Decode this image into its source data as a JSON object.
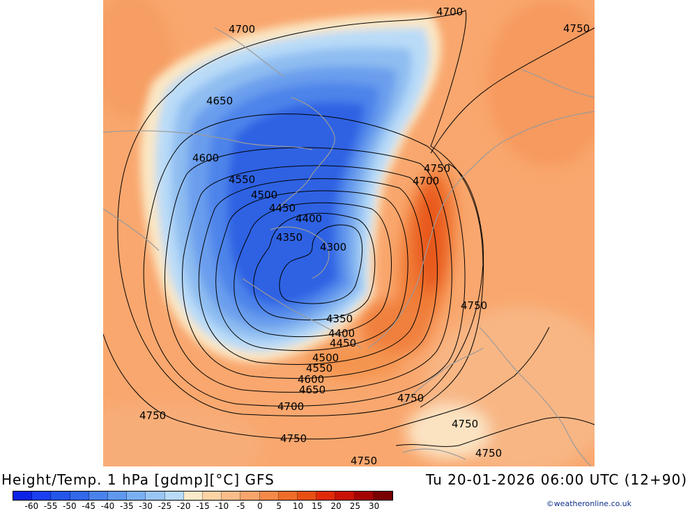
{
  "title": {
    "left": "Height/Temp. 1 hPa [gdmp][°C] GFS",
    "right": "Tu 20-01-2026 06:00 UTC (12+90)"
  },
  "credit": "©weatheronline.co.uk",
  "colorbar": {
    "colors": [
      "#0a23e6",
      "#1a3ff0",
      "#2455ea",
      "#3167e8",
      "#4a82ec",
      "#5f98ee",
      "#7ab0f2",
      "#9ac6f6",
      "#b8dbfa",
      "#fbe9c8",
      "#fcd3a4",
      "#fabd89",
      "#f7a56c",
      "#f58a48",
      "#f06d29",
      "#e84f13",
      "#e02a0a",
      "#c91106",
      "#a40303",
      "#7a0101"
    ],
    "tick_labels": [
      "-60",
      "-55",
      "-50",
      "-45",
      "-40",
      "-35",
      "-30",
      "-25",
      "-20",
      "-15",
      "-10",
      "-5",
      "0",
      "5",
      "10",
      "15",
      "20",
      "25",
      "30"
    ]
  },
  "contour_labels": [
    {
      "text": "4700",
      "id": "a"
    },
    {
      "text": "4700",
      "id": "b"
    },
    {
      "text": "4750",
      "id": "c"
    },
    {
      "text": "4650",
      "id": "d"
    },
    {
      "text": "4600",
      "id": "e"
    },
    {
      "text": "4750",
      "id": "f"
    },
    {
      "text": "4700",
      "id": "g"
    },
    {
      "text": "4550",
      "id": "h"
    },
    {
      "text": "4500",
      "id": "i"
    },
    {
      "text": "4450",
      "id": "j"
    },
    {
      "text": "4400",
      "id": "k"
    },
    {
      "text": "4350",
      "id": "l"
    },
    {
      "text": "4300",
      "id": "m"
    },
    {
      "text": "4750",
      "id": "n"
    },
    {
      "text": "4350",
      "id": "o"
    },
    {
      "text": "4400",
      "id": "p"
    },
    {
      "text": "4450",
      "id": "q"
    },
    {
      "text": "4500",
      "id": "r"
    },
    {
      "text": "4550",
      "id": "s"
    },
    {
      "text": "4600",
      "id": "t"
    },
    {
      "text": "4650",
      "id": "u"
    },
    {
      "text": "4750",
      "id": "v"
    },
    {
      "text": "4700",
      "id": "w"
    },
    {
      "text": "4750",
      "id": "x"
    },
    {
      "text": "4750",
      "id": "y"
    },
    {
      "text": "4750",
      "id": "z"
    },
    {
      "text": "4750",
      "id": "aa"
    },
    {
      "text": "4750",
      "id": "ab"
    }
  ],
  "colors": {
    "background": "#f9a76e",
    "contour": "#000000",
    "coastline": "#9a9a9a"
  }
}
